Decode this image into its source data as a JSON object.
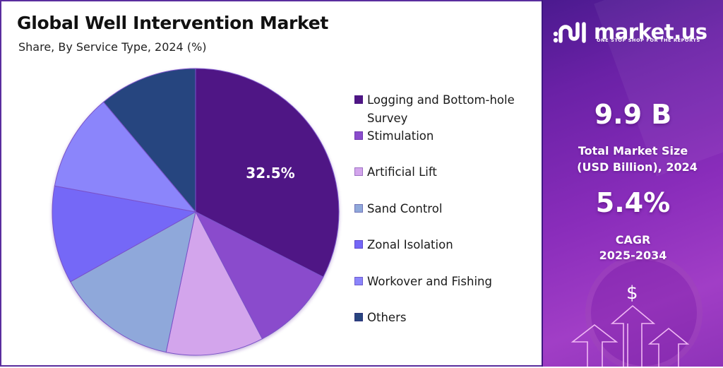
{
  "header": {
    "title": "Global Well Intervention Market",
    "subtitle": "Share, By Service Type, 2024 (%)"
  },
  "chart_data": {
    "type": "pie",
    "title": "Global Well Intervention Market",
    "subtitle": "Share, By Service Type, 2024 (%)",
    "categories": [
      "Logging and Bottom-hole Survey",
      "Stimulation",
      "Artificial Lift",
      "Sand Control",
      "Zonal Isolation",
      "Workover and Fishing",
      "Others"
    ],
    "values": [
      32.5,
      9.8,
      11.0,
      13.6,
      11.0,
      11.0,
      11.1
    ],
    "colors": [
      "#4f1585",
      "#8a4ccc",
      "#d3a5ec",
      "#8fa8da",
      "#7467f7",
      "#8b85fb",
      "#28457f"
    ],
    "data_labels": [
      {
        "category": "Logging and Bottom-hole Survey",
        "text": "32.5%"
      }
    ],
    "start_angle_deg": 0,
    "direction": "clockwise",
    "legend_position": "right"
  },
  "legend": {
    "items": [
      {
        "label": "Logging and Bottom-hole Survey",
        "color": "#4f1585"
      },
      {
        "label": "Stimulation",
        "color": "#8a4ccc"
      },
      {
        "label": "Artificial Lift",
        "color": "#d3a5ec"
      },
      {
        "label": "Sand Control",
        "color": "#8fa8da"
      },
      {
        "label": "Zonal Isolation",
        "color": "#7467f7"
      },
      {
        "label": "Workover and Fishing",
        "color": "#8b85fb"
      },
      {
        "label": "Others",
        "color": "#28457f"
      }
    ]
  },
  "pie_label": "32.5%",
  "brand": {
    "name": "market.us",
    "tagline": "ONE STOP SHOP FOR THE REPORTS"
  },
  "stats": {
    "market_size_value": "9.9 B",
    "market_size_label_line1": "Total Market Size",
    "market_size_label_line2": "(USD Billion), 2024",
    "cagr_value": "5.4%",
    "cagr_label_line1": "CAGR",
    "cagr_label_line2": "2025-2034"
  },
  "icons": {
    "dollar": "$"
  },
  "colors": {
    "border": "#5a2d9e",
    "panel_start": "#4b1a8f",
    "panel_end": "#a13ec6"
  }
}
